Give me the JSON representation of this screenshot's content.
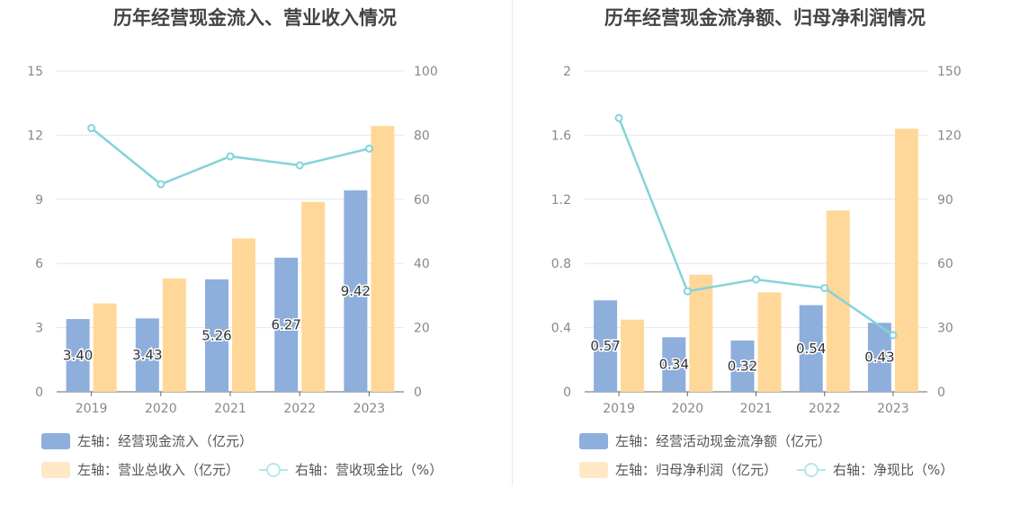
{
  "chart_data": [
    {
      "type": "bar",
      "title": "历年经营现金流入、营业收入情况",
      "categories": [
        "2019",
        "2020",
        "2021",
        "2022",
        "2023"
      ],
      "left_axis": {
        "ylim": [
          0,
          15
        ],
        "ticks": [
          "0",
          "3",
          "6",
          "9",
          "12",
          "15"
        ]
      },
      "right_axis": {
        "ylim": [
          0,
          100
        ],
        "ticks": [
          "0",
          "20",
          "40",
          "60",
          "80",
          "100"
        ]
      },
      "series": [
        {
          "name": "左轴：经营现金流入（亿元）",
          "type": "bar",
          "axis": "left",
          "color": "#8EAEDC",
          "values": [
            3.4,
            3.43,
            5.26,
            6.27,
            9.42
          ],
          "labels": [
            "3.40",
            "3.43",
            "5.26",
            "6.27",
            "9.42"
          ]
        },
        {
          "name": "左轴：营业总收入（亿元）",
          "type": "bar",
          "axis": "left",
          "color": "#FFD899",
          "values": [
            4.13,
            5.3,
            7.17,
            8.88,
            12.43
          ]
        },
        {
          "name": "右轴：营收现金比（%）",
          "type": "line",
          "axis": "right",
          "color": "#84D3DA",
          "values": [
            82.2,
            64.7,
            73.4,
            70.6,
            75.8
          ]
        }
      ],
      "grid": true,
      "legend_placement": "bottom"
    },
    {
      "type": "bar",
      "title": "历年经营现金流净额、归母净利润情况",
      "categories": [
        "2019",
        "2020",
        "2021",
        "2022",
        "2023"
      ],
      "left_axis": {
        "ylim": [
          0,
          2
        ],
        "ticks": [
          "0",
          "0.4",
          "0.8",
          "1.2",
          "1.6",
          "2"
        ]
      },
      "right_axis": {
        "ylim": [
          0,
          150
        ],
        "ticks": [
          "0",
          "30",
          "60",
          "90",
          "120",
          "150"
        ]
      },
      "series": [
        {
          "name": "左轴：经营活动现金流净额（亿元）",
          "type": "bar",
          "axis": "left",
          "color": "#8EAEDC",
          "values": [
            0.57,
            0.34,
            0.32,
            0.54,
            0.43
          ],
          "labels": [
            "0.57",
            "0.34",
            "0.32",
            "0.54",
            "0.43"
          ]
        },
        {
          "name": "左轴：归母净利润（亿元）",
          "type": "bar",
          "axis": "left",
          "color": "#FFD899",
          "values": [
            0.45,
            0.73,
            0.62,
            1.13,
            1.64
          ]
        },
        {
          "name": "右轴：净现比（%）",
          "type": "line",
          "axis": "right",
          "color": "#84D3DA",
          "values": [
            128.0,
            47.0,
            52.5,
            48.5,
            26.5
          ]
        }
      ],
      "grid": true,
      "legend_placement": "bottom"
    }
  ]
}
